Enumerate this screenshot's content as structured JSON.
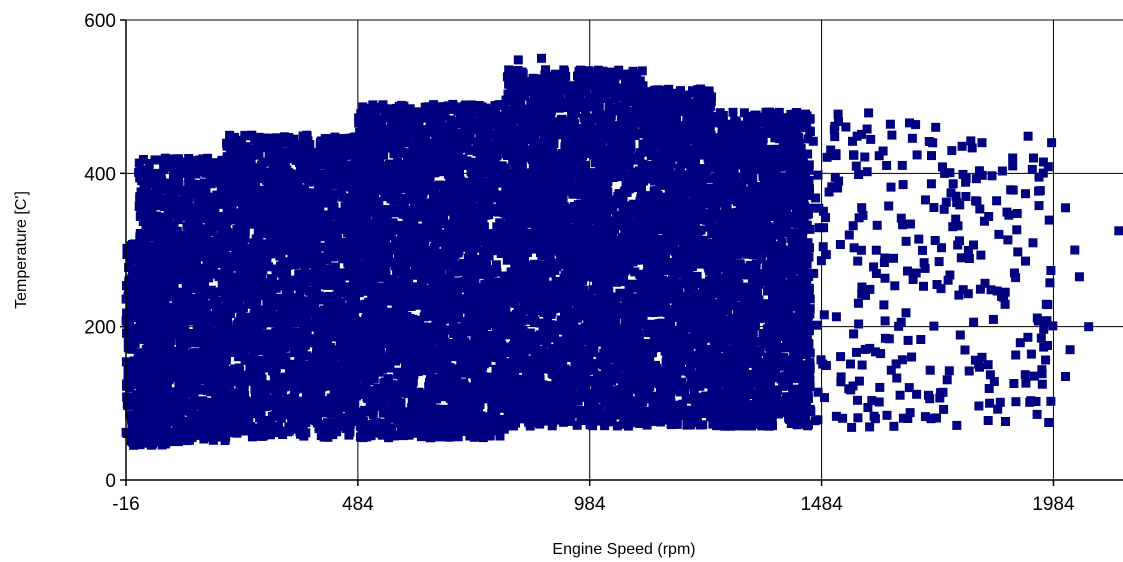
{
  "chart_data": {
    "type": "scatter",
    "title": "",
    "xlabel": "Engine Speed (rpm)",
    "ylabel": "Temperature [C']",
    "xlim": [
      -16,
      2134
    ],
    "ylim": [
      0,
      600
    ],
    "x_ticks": [
      "-16",
      "484",
      "984",
      "1484",
      "1984"
    ],
    "y_ticks": [
      "0",
      "200",
      "400",
      "600"
    ],
    "grid": true,
    "legend": "none",
    "marker": "square",
    "color": "#000080",
    "series": [
      {
        "dense_regions": [
          {
            "x": [
              -16,
              80
            ],
            "y": [
              45,
              310
            ]
          },
          {
            "x": [
              10,
              200
            ],
            "y": [
              50,
              420
            ]
          },
          {
            "x": [
              200,
              484
            ],
            "y": [
              55,
              450
            ]
          },
          {
            "x": [
              484,
              800
            ],
            "y": [
              55,
              490
            ]
          },
          {
            "x": [
              800,
              1100
            ],
            "y": [
              70,
              535
            ]
          },
          {
            "x": [
              1100,
              1250
            ],
            "y": [
              70,
              510
            ]
          },
          {
            "x": [
              1250,
              1460
            ],
            "y": [
              70,
              480
            ]
          }
        ],
        "sparse_regions": [
          {
            "x": [
              1460,
              1700
            ],
            "y": [
              65,
              480
            ]
          },
          {
            "x": [
              1700,
              1984
            ],
            "y": [
              70,
              450
            ]
          }
        ],
        "outliers": [
          {
            "x": 830,
            "y": 548
          },
          {
            "x": 880,
            "y": 550
          },
          {
            "x": 640,
            "y": 55
          },
          {
            "x": 1730,
            "y": 460
          },
          {
            "x": 1830,
            "y": 440
          },
          {
            "x": 1980,
            "y": 440
          },
          {
            "x": 1960,
            "y": 125
          },
          {
            "x": 2010,
            "y": 135
          },
          {
            "x": 2020,
            "y": 170
          },
          {
            "x": 2060,
            "y": 200
          },
          {
            "x": 2040,
            "y": 265
          },
          {
            "x": 2030,
            "y": 300
          },
          {
            "x": 2010,
            "y": 355
          },
          {
            "x": 2125,
            "y": 325
          },
          {
            "x": 1900,
            "y": 270
          },
          {
            "x": 1880,
            "y": 245
          },
          {
            "x": 1830,
            "y": 160
          },
          {
            "x": 1600,
            "y": 80
          },
          {
            "x": 1640,
            "y": 70
          },
          {
            "x": 1720,
            "y": 80
          }
        ]
      }
    ]
  }
}
